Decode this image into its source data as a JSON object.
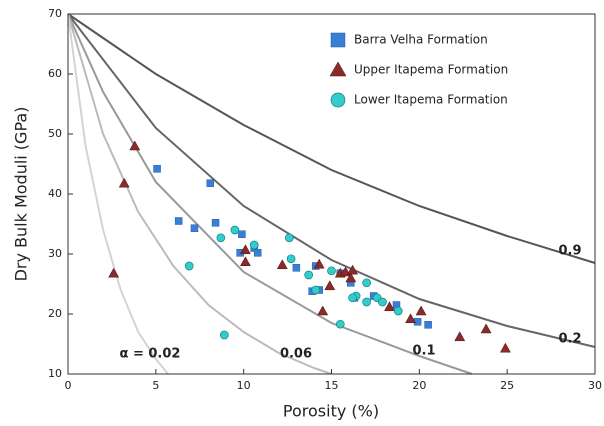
{
  "chart_data": {
    "type": "scatter",
    "xlabel": "Porosity (%)",
    "ylabel": "Dry Bulk Moduli (GPa)",
    "xlim": [
      0,
      30
    ],
    "ylim": [
      10,
      70
    ],
    "xticks": [
      0,
      5,
      10,
      15,
      20,
      25,
      30
    ],
    "yticks": [
      10,
      20,
      30,
      40,
      50,
      60,
      70
    ],
    "grid": false,
    "legend": "upper right",
    "series": [
      {
        "name": "Barra Velha Formation",
        "color": "#3a7fd5",
        "marker": "square",
        "x": [
          5.07,
          8.1,
          6.3,
          7.2,
          8.4,
          9.8,
          9.9,
          10.6,
          10.8,
          13,
          14.1,
          13.9,
          14.3,
          15.5,
          16.1,
          16.3,
          17.4,
          18.7,
          19.9,
          20.5
        ],
        "values": [
          44.2,
          41.8,
          35.5,
          34.3,
          35.2,
          30.2,
          33.3,
          31,
          30.2,
          27.7,
          28,
          23.8,
          24,
          26.8,
          25.2,
          22.7,
          23,
          21.5,
          18.7,
          18.2
        ]
      },
      {
        "name": "Upper Itapema Formation",
        "color": "#8b2a2a",
        "marker": "triangle",
        "x": [
          3.8,
          3.2,
          2.6,
          10.1,
          10.1,
          12.2,
          14.3,
          14.5,
          14.9,
          15.5,
          15.8,
          16.1,
          16.2,
          18.3,
          19.5,
          20.1,
          22.3,
          23.8,
          24.9
        ],
        "values": [
          48,
          41.8,
          26.8,
          30.7,
          28.7,
          28.2,
          28.3,
          20.5,
          24.7,
          26.8,
          27,
          26,
          27.3,
          21.2,
          19.2,
          20.5,
          16.2,
          17.5,
          14.3
        ]
      },
      {
        "name": "Lower Itapema Formation",
        "color": "#33cccc",
        "marker": "circle",
        "x": [
          6.9,
          8.7,
          9.5,
          10.6,
          8.9,
          12.6,
          12.7,
          13.7,
          14.1,
          15,
          15.5,
          16.4,
          17,
          17,
          17.6,
          17.9,
          18.8,
          16.2
        ],
        "values": [
          28,
          32.7,
          34,
          31.5,
          16.5,
          32.7,
          29.2,
          26.5,
          24,
          27.2,
          18.3,
          23,
          25.2,
          22,
          22.7,
          22,
          20.5,
          22.7
        ]
      }
    ],
    "curves": [
      {
        "name": "0.9",
        "color": "#555555",
        "x": [
          0,
          5,
          10,
          15,
          20,
          25,
          30
        ],
        "values": [
          70,
          60,
          51.5,
          44,
          38,
          33,
          28.5
        ]
      },
      {
        "name": "0.2",
        "color": "#666666",
        "x": [
          0,
          5,
          10,
          15,
          20,
          25,
          30
        ],
        "values": [
          70,
          51,
          38,
          29,
          22.5,
          18,
          14.5
        ]
      },
      {
        "name": "0.1",
        "color": "#999999",
        "x": [
          0,
          2,
          5,
          10,
          15,
          20,
          23
        ],
        "values": [
          70,
          57,
          42,
          27,
          18.5,
          13,
          10
        ]
      },
      {
        "name": "0.06",
        "color": "#bbbbbb",
        "x": [
          0,
          2,
          4,
          6,
          8,
          10,
          12,
          14,
          15
        ],
        "values": [
          70,
          50,
          37,
          28,
          21.5,
          17,
          13.5,
          11,
          10
        ]
      },
      {
        "name": "α = 0.02",
        "color": "#d4d4d4",
        "x": [
          0,
          1,
          2,
          3,
          4,
          5,
          5.7
        ],
        "values": [
          70,
          48,
          34,
          24,
          17,
          12.5,
          10
        ]
      }
    ]
  }
}
